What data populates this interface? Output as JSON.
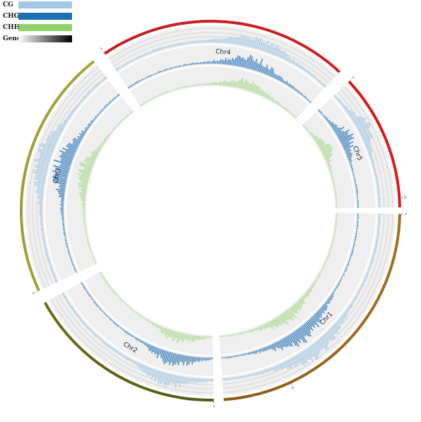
{
  "legend": {
    "items": [
      {
        "label": "CG",
        "color": "#a3c8e6",
        "kind": "solid"
      },
      {
        "label": "CHG",
        "color": "#1f6fb4",
        "kind": "solid"
      },
      {
        "label": "CHH",
        "color": "#8fd16a",
        "kind": "solid"
      },
      {
        "label": "Gene",
        "color_start": "#ffffff",
        "color_end": "#000000",
        "kind": "gradient"
      }
    ]
  },
  "chart_data": {
    "type": "circos",
    "chromosomes": [
      {
        "name": "Chr1",
        "color_start": "#8a5a18",
        "color_end": "#a06f1f",
        "start_deg": 91,
        "end_deg": 176,
        "ticks": [
          {
            "label": "0",
            "deg": 91
          },
          {
            "label": "25",
            "deg": 155
          }
        ]
      },
      {
        "name": "Chr2",
        "color_start": "#6e6a1a",
        "color_end": "#4f5a12",
        "start_deg": 179,
        "end_deg": 241,
        "ticks": [
          {
            "label": "0",
            "deg": 179
          }
        ]
      },
      {
        "name": "Chr3",
        "color_start": "#9aa033",
        "color_end": "#a5a339",
        "start_deg": 245,
        "end_deg": 322,
        "ticks": [
          {
            "label": "0",
            "deg": 245
          }
        ]
      },
      {
        "name": "Chr4",
        "color_start": "#c01f1f",
        "color_end": "#d02020",
        "start_deg": 326,
        "end_deg": 403,
        "ticks": [
          {
            "label": "0",
            "deg": 326
          }
        ]
      },
      {
        "name": "Chr5",
        "color_start": "#d11a1a",
        "color_end": "#e01818",
        "start_deg": 407,
        "end_deg": 449,
        "ticks": [
          {
            "label": "0",
            "deg": 407
          },
          {
            "label": "25",
            "deg": 446
          }
        ]
      }
    ],
    "tracks": [
      "CG",
      "CHG",
      "CHH"
    ],
    "density_peaks": [
      {
        "chr": "Chr1",
        "center_fraction": 0.62,
        "level": 0.9
      },
      {
        "chr": "Chr2",
        "center_fraction": 0.25,
        "level": 0.8
      },
      {
        "chr": "Chr3",
        "center_fraction": 0.55,
        "level": 1.0
      },
      {
        "chr": "Chr4",
        "center_fraction": 0.65,
        "level": 0.75
      },
      {
        "chr": "Chr5",
        "center_fraction": 0.35,
        "level": 0.85
      }
    ]
  }
}
